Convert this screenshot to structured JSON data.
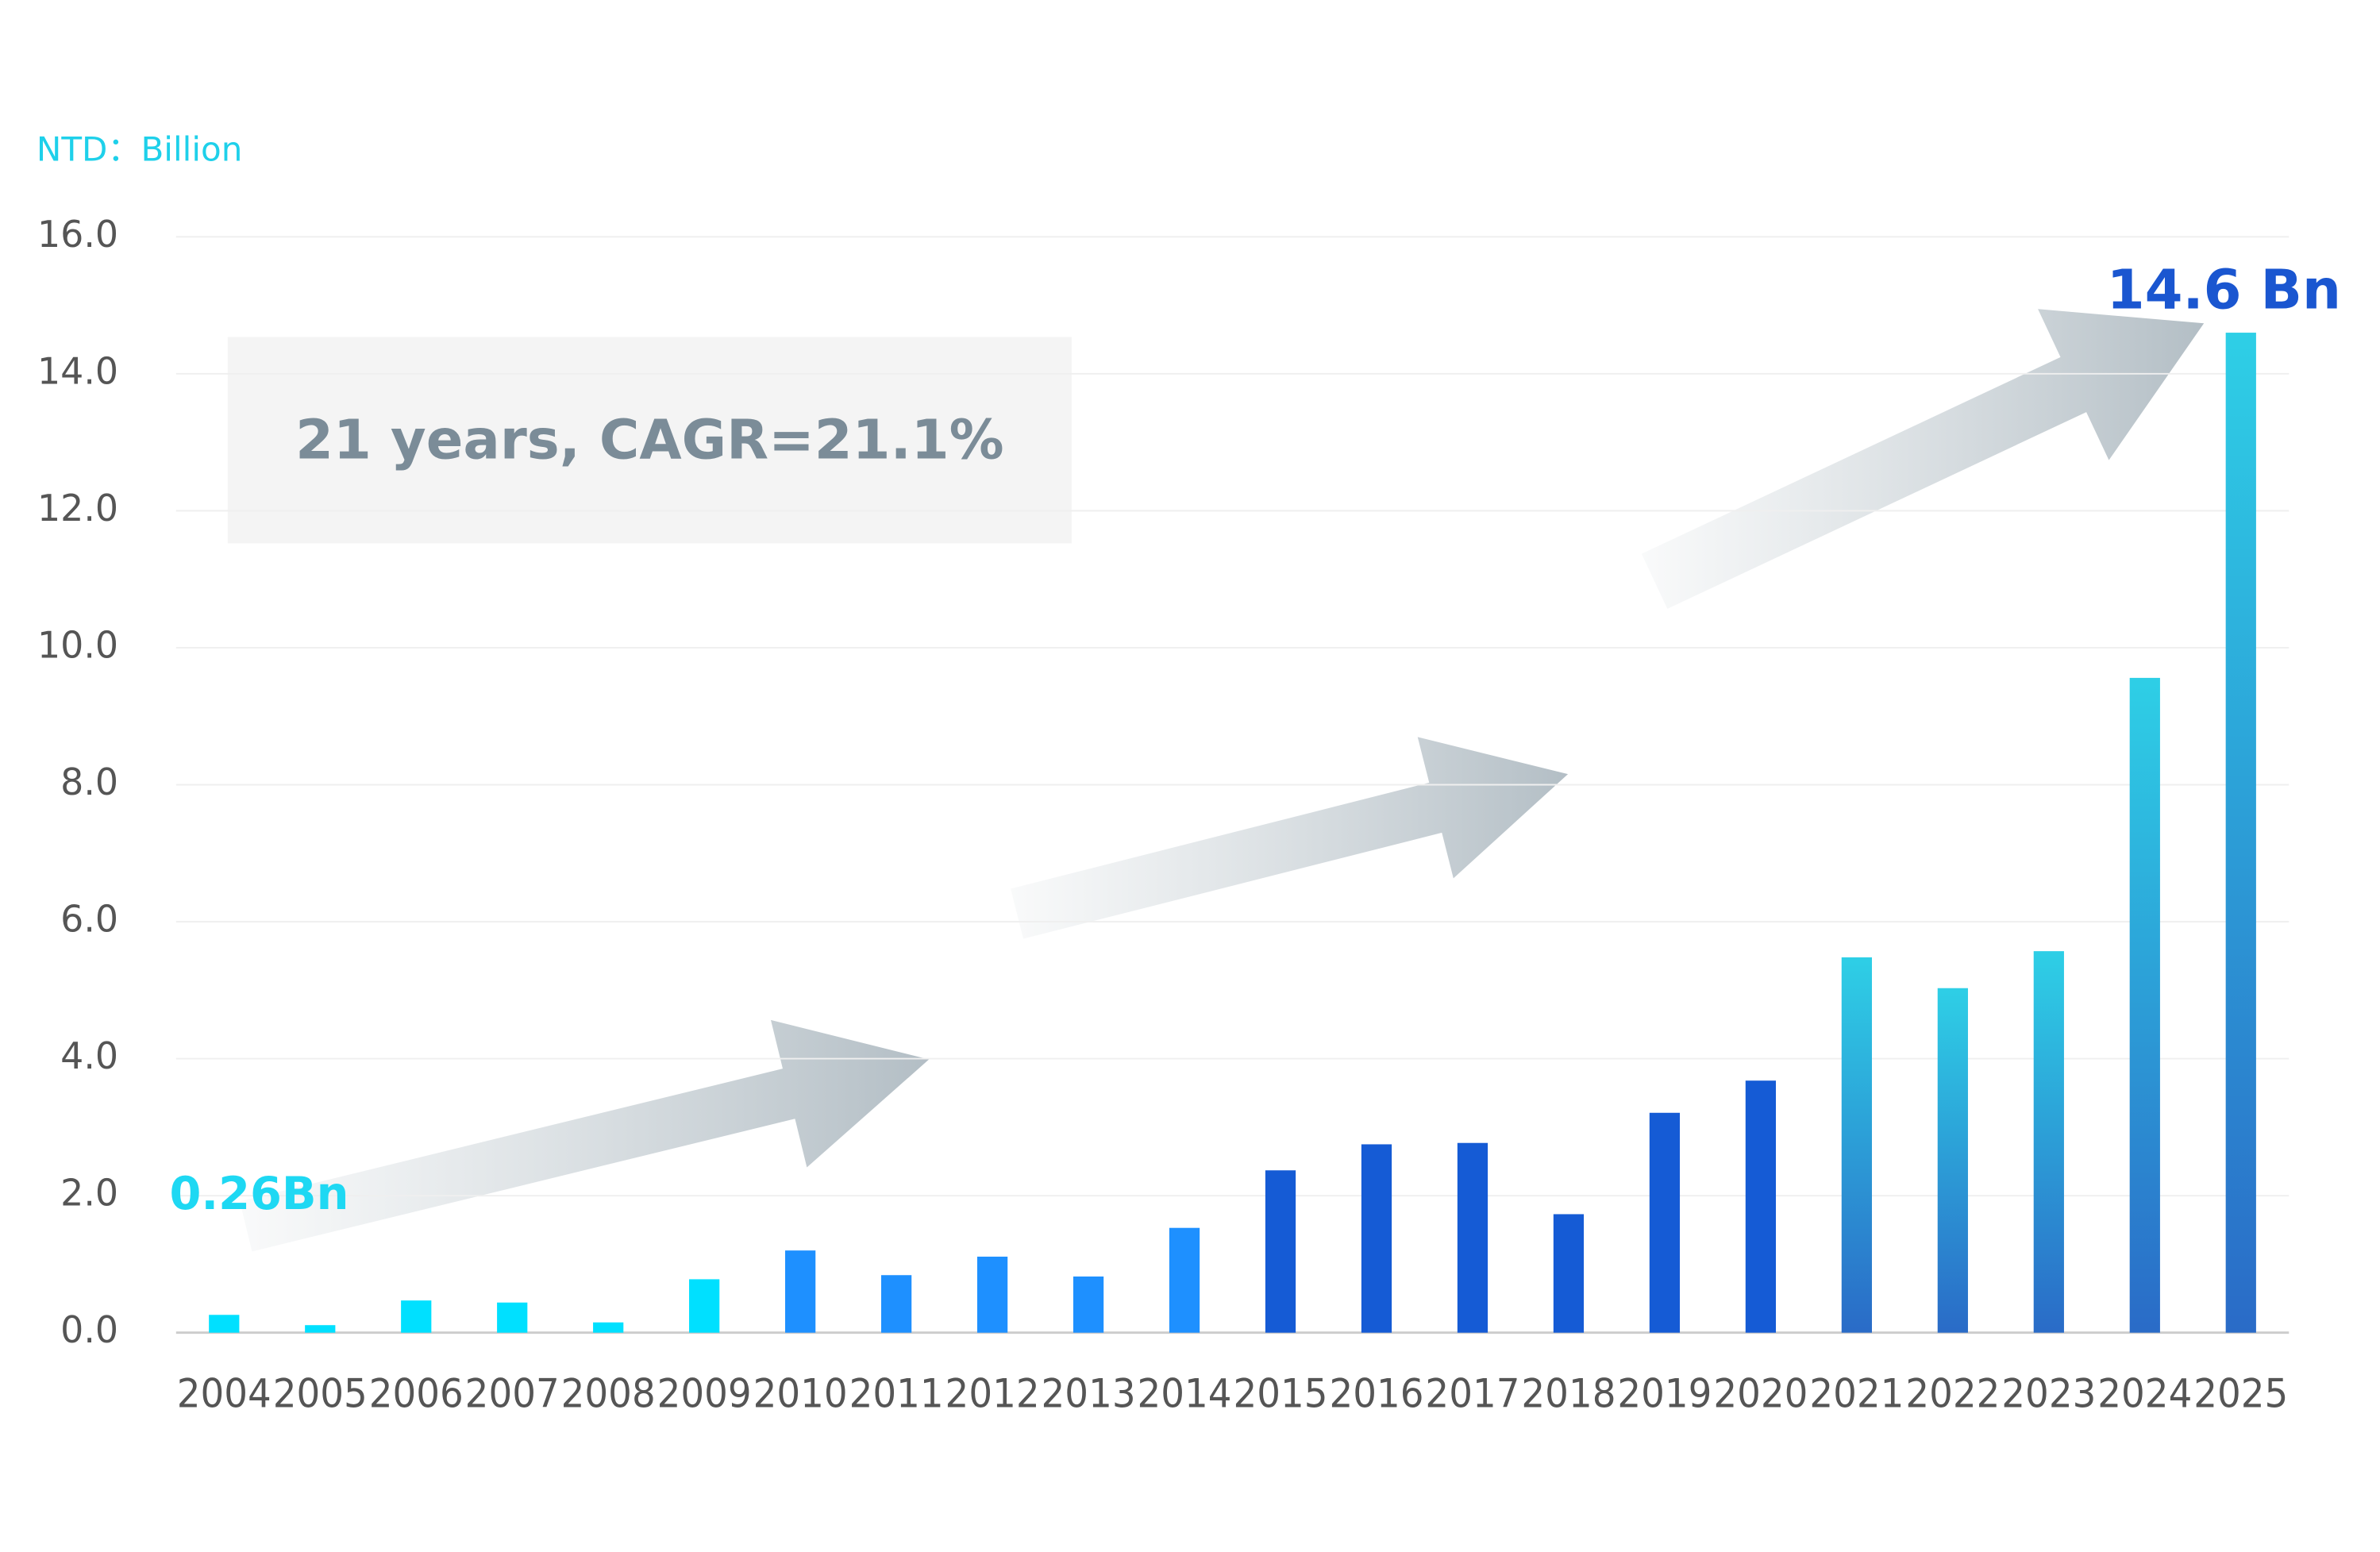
{
  "chart_data": {
    "type": "bar",
    "unit_label": "NTD：Billion",
    "annotation": "21 years, CAGR=21.1%",
    "categories": [
      "2004",
      "2005",
      "2006",
      "2007",
      "2008",
      "2009",
      "2010",
      "2011",
      "2012",
      "2013",
      "2014",
      "2015",
      "2016",
      "2017",
      "2018",
      "2019",
      "2020",
      "2021",
      "2022",
      "2023",
      "2024",
      "2025"
    ],
    "values": [
      0.26,
      0.11,
      0.47,
      0.44,
      0.15,
      0.78,
      1.2,
      0.84,
      1.11,
      0.82,
      1.53,
      2.37,
      2.75,
      2.77,
      1.73,
      3.21,
      3.68,
      5.48,
      5.03,
      5.57,
      9.56,
      14.6
    ],
    "value_labels": [
      "0.26Bn",
      null,
      null,
      null,
      null,
      null,
      null,
      null,
      null,
      null,
      null,
      null,
      null,
      null,
      null,
      null,
      null,
      null,
      null,
      null,
      null,
      "14.6 Bn"
    ],
    "colors": [
      "#00e0ff",
      "#00e0ff",
      "#00e0ff",
      "#00e0ff",
      "#00e0ff",
      "#00e0ff",
      "#1e90ff",
      "#1e90ff",
      "#1e90ff",
      "#1e90ff",
      "#1e90ff",
      "#155bd5",
      "#155bd5",
      "#155bd5",
      "#155bd5",
      "#155bd5",
      "#155bd5",
      [
        "#2ecfe6",
        "#2a6bc7"
      ],
      [
        "#2ecfe6",
        "#2a6bc7"
      ],
      [
        "#2ecfe6",
        "#2a6bc7"
      ],
      [
        "#2ecfe6",
        "#2a6bc7"
      ],
      [
        "#2ecfe6",
        "#2a6bc7"
      ]
    ],
    "ylim": [
      0,
      16
    ],
    "yticks": [
      {
        "value": 0,
        "label": "0.0"
      },
      {
        "value": 2,
        "label": "2.0"
      },
      {
        "value": 4,
        "label": "4.0"
      },
      {
        "value": 6,
        "label": "6.0"
      },
      {
        "value": 8,
        "label": "8.0"
      },
      {
        "value": 10,
        "label": "10.0"
      },
      {
        "value": 12,
        "label": "12.0"
      },
      {
        "value": 14,
        "label": "14.0"
      },
      {
        "value": 16,
        "label": "16.0"
      }
    ],
    "grid": true
  }
}
